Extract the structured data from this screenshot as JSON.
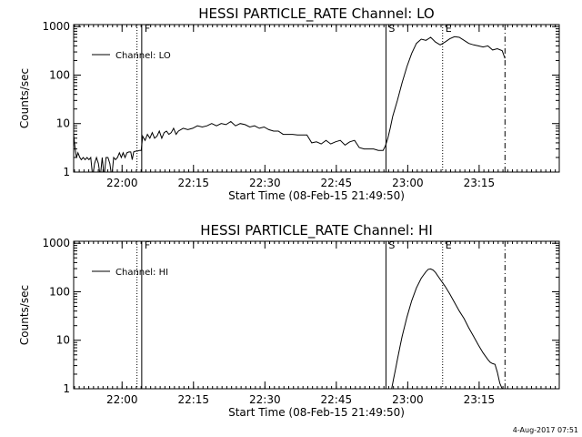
{
  "page": {
    "timestamp": "4-Aug-2017 07:51"
  },
  "chart_data": [
    {
      "type": "line",
      "title": "HESSI PARTICLE_RATE Channel: LO",
      "xlabel": "Start Time (08-Feb-15 21:49:50)",
      "ylabel": "Counts/sec",
      "legend": {
        "label": "Channel: LO",
        "position": "top-left"
      },
      "xlim_minutes": [
        0,
        102
      ],
      "ylim": [
        1,
        1100
      ],
      "yscale": "log",
      "x_ticks": [
        {
          "t": 10.17,
          "label": "22:00"
        },
        {
          "t": 25.17,
          "label": "22:15"
        },
        {
          "t": 40.17,
          "label": "22:30"
        },
        {
          "t": 55.17,
          "label": "22:45"
        },
        {
          "t": 70.17,
          "label": "23:00"
        },
        {
          "t": 85.17,
          "label": "23:15"
        }
      ],
      "y_ticks": [
        {
          "v": 1,
          "label": "1"
        },
        {
          "v": 10,
          "label": "10"
        },
        {
          "v": 100,
          "label": "100"
        },
        {
          "v": 1000,
          "label": "1000"
        }
      ],
      "markers": [
        {
          "t": 13.3,
          "style": "dotted",
          "label": ""
        },
        {
          "t": 14.3,
          "style": "solid",
          "label": "F"
        },
        {
          "t": 65.6,
          "style": "solid",
          "label": "S"
        },
        {
          "t": 77.5,
          "style": "dotted",
          "label": "E"
        },
        {
          "t": 90.6,
          "style": "dashdot",
          "label": ""
        }
      ],
      "series": [
        {
          "name": "Channel: LO",
          "x": [
            0,
            0.3,
            0.6,
            0.9,
            1.3,
            1.6,
            2.0,
            2.4,
            2.8,
            3.2,
            3.6,
            4.0,
            4.4,
            4.8,
            5.2,
            5.6,
            6.0,
            6.4,
            6.8,
            7.2,
            7.6,
            8.0,
            8.4,
            8.8,
            9.2,
            9.6,
            10.0,
            10.4,
            10.8,
            11.2,
            11.6,
            12.0,
            12.3,
            12.6,
            13.0,
            13.4,
            13.8,
            14.2,
            14.5,
            15.0,
            15.5,
            16.0,
            16.5,
            17.0,
            17.5,
            18.0,
            18.5,
            19.0,
            19.5,
            20.0,
            20.5,
            21.0,
            21.5,
            22.0,
            23.0,
            24.0,
            25.0,
            26.0,
            27.0,
            28.0,
            29.0,
            30.0,
            31.0,
            32.0,
            33.0,
            34.0,
            35.0,
            36.0,
            37.0,
            38.0,
            39.0,
            40.0,
            41.0,
            42.0,
            43.0,
            44.0,
            45.0,
            46.0,
            47.0,
            48.0,
            49.0,
            50.0,
            51.0,
            52.0,
            53.0,
            54.0,
            55.0,
            56.0,
            57.0,
            58.0,
            59.0,
            60.0,
            61.0,
            62.0,
            63.0,
            64.0,
            65.0,
            65.5,
            66.0,
            66.5,
            67.0,
            68.0,
            69.0,
            70.0,
            71.0,
            72.0,
            73.0,
            74.0,
            75.0,
            76.0,
            77.0,
            78.0,
            79.0,
            80.0,
            81.0,
            82.0,
            83.0,
            84.0,
            85.0,
            86.0,
            87.0,
            88.0,
            89.0,
            90.0,
            90.6
          ],
          "values": [
            6,
            3,
            2,
            2.5,
            2,
            1.8,
            2,
            1.8,
            2,
            1.8,
            2,
            0.8,
            1.5,
            2,
            1.5,
            0.8,
            2,
            0.8,
            2,
            2,
            1.5,
            0.8,
            2,
            1.8,
            2,
            2.5,
            2,
            2.5,
            2,
            2.5,
            2.6,
            2.6,
            1.8,
            2.6,
            2.7,
            2.7,
            2.8,
            2.8,
            5.5,
            4.5,
            6,
            5,
            6.5,
            5,
            5.5,
            7,
            5,
            6.5,
            7,
            6,
            6.5,
            8,
            6,
            7,
            8,
            7.5,
            8,
            9,
            8.5,
            9,
            10,
            9,
            10,
            9.5,
            11,
            9,
            10,
            9.5,
            8.5,
            9,
            8,
            8.5,
            7.5,
            7,
            7,
            6,
            6,
            6,
            5.8,
            5.8,
            5.8,
            4,
            4.2,
            3.8,
            4.5,
            3.8,
            4.2,
            4.5,
            3.6,
            4.2,
            4.5,
            3.2,
            3,
            3,
            3,
            2.8,
            2.8,
            3.5,
            5,
            8,
            14,
            30,
            70,
            150,
            280,
            450,
            550,
            520,
            600,
            480,
            420,
            480,
            560,
            620,
            600,
            520,
            450,
            420,
            400,
            380,
            400,
            330,
            350,
            320,
            220
          ]
        }
      ]
    },
    {
      "type": "line",
      "title": "HESSI PARTICLE_RATE Channel: HI",
      "xlabel": "Start Time (08-Feb-15 21:49:50)",
      "ylabel": "Counts/sec",
      "legend": {
        "label": "Channel: HI",
        "position": "top-left"
      },
      "xlim_minutes": [
        0,
        102
      ],
      "ylim": [
        1,
        1100
      ],
      "yscale": "log",
      "x_ticks": [
        {
          "t": 10.17,
          "label": "22:00"
        },
        {
          "t": 25.17,
          "label": "22:15"
        },
        {
          "t": 40.17,
          "label": "22:30"
        },
        {
          "t": 55.17,
          "label": "22:45"
        },
        {
          "t": 70.17,
          "label": "23:00"
        },
        {
          "t": 85.17,
          "label": "23:15"
        }
      ],
      "y_ticks": [
        {
          "v": 1,
          "label": "1"
        },
        {
          "v": 10,
          "label": "10"
        },
        {
          "v": 100,
          "label": "100"
        },
        {
          "v": 1000,
          "label": "1000"
        }
      ],
      "markers": [
        {
          "t": 13.3,
          "style": "dotted",
          "label": ""
        },
        {
          "t": 14.3,
          "style": "solid",
          "label": "F"
        },
        {
          "t": 65.6,
          "style": "solid",
          "label": "S"
        },
        {
          "t": 77.5,
          "style": "dotted",
          "label": "E"
        },
        {
          "t": 90.6,
          "style": "dashdot",
          "label": ""
        }
      ],
      "series": [
        {
          "name": "Channel: HI",
          "x": [
            66.8,
            67.2,
            67.6,
            68.0,
            68.5,
            69.0,
            70.0,
            71.0,
            72.0,
            73.0,
            74.0,
            74.5,
            75.0,
            75.5,
            76.0,
            77.0,
            78.0,
            79.0,
            80.0,
            81.0,
            82.0,
            83.0,
            84.0,
            85.0,
            86.0,
            87.0,
            87.5,
            88.0,
            88.5,
            89.0,
            89.5,
            90.0
          ],
          "values": [
            1,
            1.6,
            2.5,
            4,
            7,
            12,
            30,
            65,
            120,
            190,
            260,
            290,
            295,
            280,
            250,
            180,
            130,
            90,
            60,
            40,
            28,
            18,
            12,
            8,
            5.5,
            4,
            3.5,
            3.3,
            3.2,
            2.2,
            1.3,
            1
          ]
        }
      ]
    }
  ]
}
